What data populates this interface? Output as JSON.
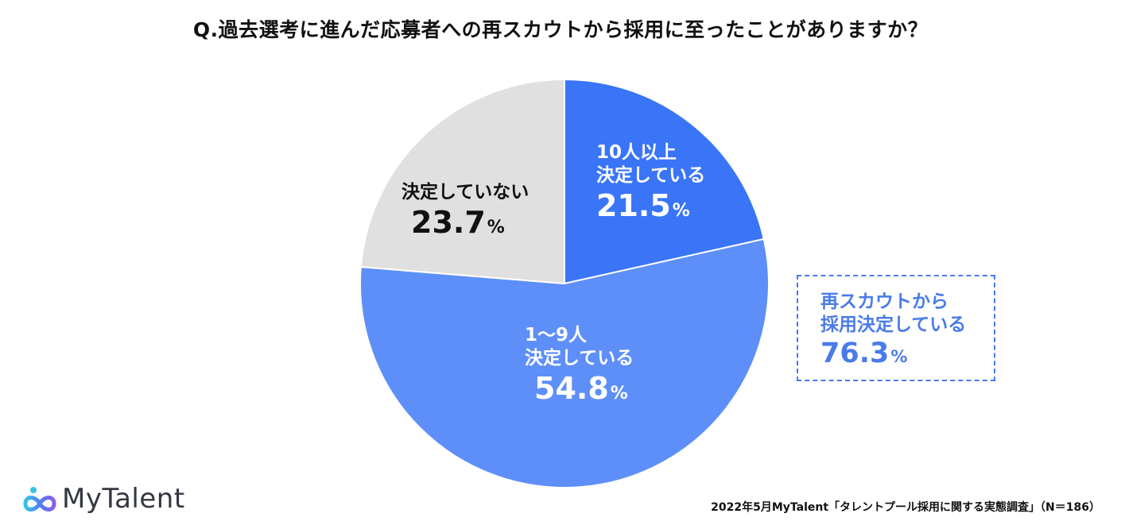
{
  "chart_data": {
    "type": "pie",
    "title": "Q.過去選考に進んだ応募者への再スカウトから採用に至ったことがありますか？",
    "slices": [
      {
        "label_line1": "10人以上",
        "label_line2": "決定している",
        "value": 21.5,
        "value_text": "21.5",
        "color": "#3a75f8",
        "text_color": "#ffffff"
      },
      {
        "label_line1": "1〜9人",
        "label_line2": "決定している",
        "value": 54.8,
        "value_text": "54.8",
        "color": "#5e8ff9",
        "text_color": "#ffffff"
      },
      {
        "label_line1": "決定していない",
        "label_line2": "",
        "value": 23.7,
        "value_text": "23.7",
        "color": "#e0e0e0",
        "text_color": "#111111"
      }
    ],
    "percent_symbol": "%",
    "callout": {
      "line1": "再スカウトから",
      "line2": "採用決定している",
      "value_text": "76.3",
      "color": "#4a7be8"
    }
  },
  "footer": {
    "logo_text": "MyTalent",
    "source": "2022年5月MyTalent「タレントプール採用に関する実態調査」（N＝186）"
  }
}
